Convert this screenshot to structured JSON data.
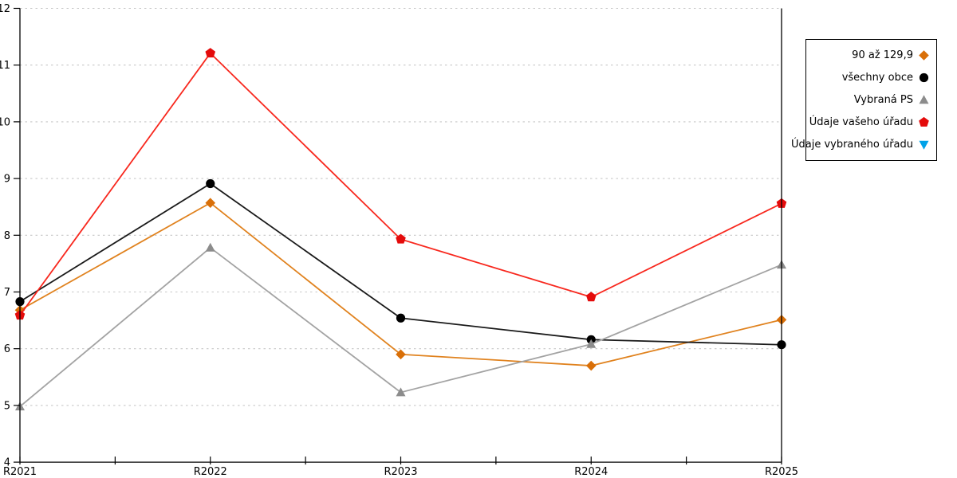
{
  "chart_data": {
    "type": "line",
    "title": "",
    "xlabel": "",
    "ylabel": "",
    "categories": [
      "R2021",
      "R2022",
      "R2023",
      "R2024",
      "R2025"
    ],
    "series": [
      {
        "name": "90 až 129,9",
        "marker": "diamond",
        "line_color": "#e0821e",
        "marker_color": "#d96f08",
        "values": [
          6.68,
          8.57,
          5.9,
          5.7,
          6.51
        ]
      },
      {
        "name": "všechny obce",
        "marker": "circle",
        "line_color": "#1a1a1a",
        "marker_color": "#000000",
        "values": [
          6.83,
          8.91,
          6.54,
          6.16,
          6.07
        ]
      },
      {
        "name": "Vybraná PS",
        "marker": "triangle-up",
        "line_color": "#a3a3a3",
        "marker_color": "#8c8c8c",
        "values": [
          4.98,
          7.78,
          5.23,
          6.08,
          7.48
        ]
      },
      {
        "name": "Údaje vašeho úřadu",
        "marker": "pentagon",
        "line_color": "#f8281e",
        "marker_color": "#e40b0b",
        "values": [
          6.59,
          11.21,
          7.93,
          6.91,
          8.56
        ]
      },
      {
        "name": "Údaje vybraného úřadu",
        "marker": "triangle-down",
        "line_color": "#00a2e8",
        "marker_color": "#00a2e8",
        "values": []
      }
    ],
    "ylim": [
      4,
      12
    ],
    "yticks": [
      4,
      5,
      6,
      7,
      8,
      9,
      10,
      11,
      12
    ],
    "grid": true,
    "grid_style": "dotted",
    "grid_color": "#c8c8c8",
    "legend_position": "right",
    "legend_order": [
      "90 až 129,9",
      "všechny obce",
      "Vybraná PS",
      "Údaje vašeho úřadu",
      "Údaje vybraného úřadu"
    ]
  }
}
